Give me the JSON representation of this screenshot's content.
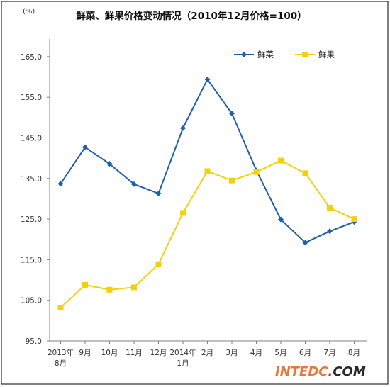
{
  "chart_data": {
    "type": "line",
    "title": "鲜菜、鲜果价格变动情况（2010年12月价格=100）",
    "unit_label": "(%)",
    "xlabel": "",
    "ylabel": "",
    "ylim": [
      95,
      170
    ],
    "y_ticks": [
      "95.0",
      "105.0",
      "115.0",
      "125.0",
      "135.0",
      "145.0",
      "155.0",
      "165.0"
    ],
    "categories": [
      [
        "2013年",
        "8月"
      ],
      [
        "9月"
      ],
      [
        "10月"
      ],
      [
        "11月"
      ],
      [
        "12月"
      ],
      [
        "2014年",
        "1月"
      ],
      [
        "2月"
      ],
      [
        "3月"
      ],
      [
        "4月"
      ],
      [
        "5月"
      ],
      [
        "6月"
      ],
      [
        "7月"
      ],
      [
        "8月"
      ]
    ],
    "series": [
      {
        "name": "鲜菜",
        "color": "#1f5fad",
        "marker": "diamond",
        "values": [
          133.7,
          142.7,
          138.6,
          133.6,
          131.3,
          147.4,
          159.4,
          151.0,
          137.0,
          124.9,
          119.2,
          122.0,
          124.3
        ]
      },
      {
        "name": "鲜果",
        "color": "#f5d00f",
        "marker": "square",
        "values": [
          103.2,
          108.8,
          107.6,
          108.2,
          113.9,
          126.5,
          136.8,
          134.5,
          136.6,
          139.4,
          136.3,
          127.8,
          125.0
        ]
      }
    ],
    "legend_position": "top-right",
    "grid": false
  },
  "watermark": {
    "text_main": "INTEDC",
    "text_dot": ".",
    "text_suffix": "COM"
  }
}
